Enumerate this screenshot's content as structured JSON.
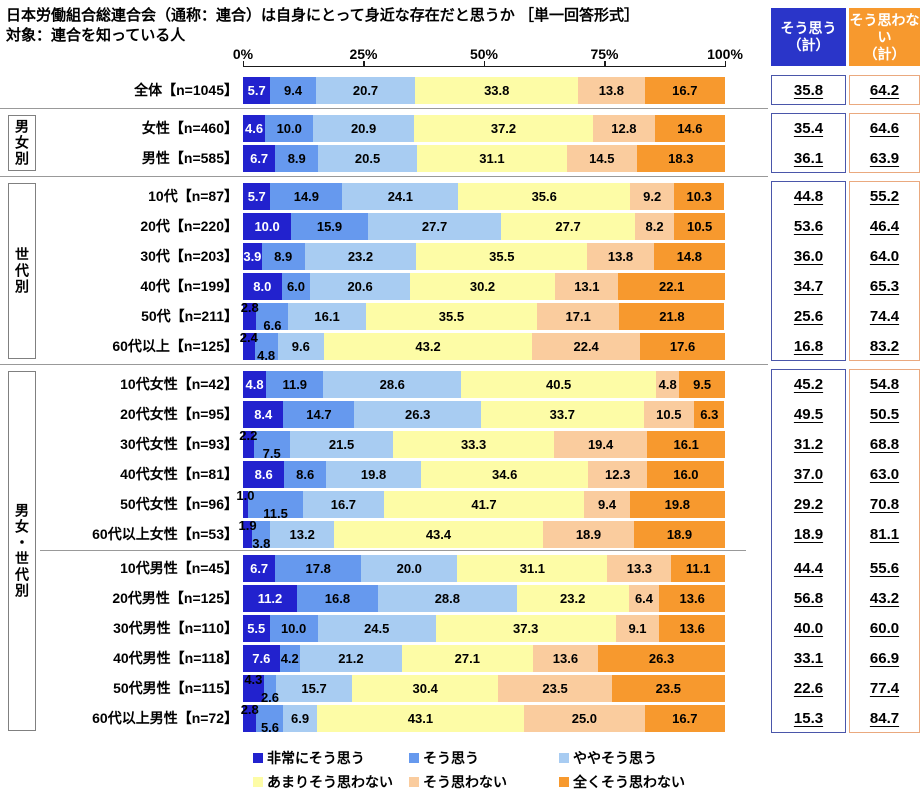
{
  "page": {
    "title": "日本労働組合総連合会（通称：連合）は自身にとって身近な存在だと思うか ［単一回答形式］",
    "subtitle": "対象：連合を知っている人"
  },
  "chart_data": {
    "type": "bar",
    "stacked": true,
    "orientation": "horizontal",
    "unit": "%",
    "xlim": [
      0,
      100
    ],
    "x_ticks": [
      "0%",
      "25%",
      "50%",
      "75%",
      "100%"
    ],
    "legend_position": "bottom",
    "series_names": [
      "非常にそう思う",
      "そう思う",
      "ややそう思う",
      "あまりそう思わない",
      "そう思わない",
      "全くそう思わない"
    ],
    "series_colors": [
      "#2222CE",
      "#6699EE",
      "#A8CCF2",
      "#FDFCA6",
      "#FACC9E",
      "#F7992E"
    ],
    "summary_columns": [
      {
        "label": "そう思う\n（計）",
        "bg": "#2A35C9",
        "border": "#4A56AA"
      },
      {
        "label": "そう思わない\n（計）",
        "bg": "#F7992E",
        "border": "#EAA97F"
      }
    ],
    "groups": [
      {
        "name": "",
        "rows": [
          {
            "label": "全体【n=1045】",
            "values": [
              "5.7",
              "9.4",
              "20.7",
              "33.8",
              "13.8",
              "16.7"
            ],
            "agree": "35.8",
            "disagree": "64.2"
          }
        ]
      },
      {
        "name": "男女別",
        "rows": [
          {
            "label": "女性【n=460】",
            "values": [
              "4.6",
              "10.0",
              "20.9",
              "37.2",
              "12.8",
              "14.6"
            ],
            "agree": "35.4",
            "disagree": "64.6"
          },
          {
            "label": "男性【n=585】",
            "values": [
              "6.7",
              "8.9",
              "20.5",
              "31.1",
              "14.5",
              "18.3"
            ],
            "agree": "36.1",
            "disagree": "63.9"
          }
        ]
      },
      {
        "name": "世代別",
        "rows": [
          {
            "label": "10代【n=87】",
            "values": [
              "5.7",
              "14.9",
              "24.1",
              "35.6",
              "9.2",
              "10.3"
            ],
            "agree": "44.8",
            "disagree": "55.2"
          },
          {
            "label": "20代【n=220】",
            "values": [
              "10.0",
              "15.9",
              "27.7",
              "27.7",
              "8.2",
              "10.5"
            ],
            "agree": "53.6",
            "disagree": "46.4"
          },
          {
            "label": "30代【n=203】",
            "values": [
              "3.9",
              "8.9",
              "23.2",
              "35.5",
              "13.8",
              "14.8"
            ],
            "agree": "36.0",
            "disagree": "64.0"
          },
          {
            "label": "40代【n=199】",
            "values": [
              "8.0",
              "6.0",
              "20.6",
              "30.2",
              "13.1",
              "22.1"
            ],
            "agree": "34.7",
            "disagree": "65.3"
          },
          {
            "label": "50代【n=211】",
            "values": [
              "2.8",
              "6.6",
              "16.1",
              "35.5",
              "17.1",
              "21.8"
            ],
            "agree": "25.6",
            "disagree": "74.4"
          },
          {
            "label": "60代以上【n=125】",
            "values": [
              "2.4",
              "4.8",
              "9.6",
              "43.2",
              "22.4",
              "17.6"
            ],
            "agree": "16.8",
            "disagree": "83.2"
          }
        ]
      },
      {
        "name": "男女・世代別",
        "split_after": 6,
        "rows": [
          {
            "label": "10代女性【n=42】",
            "values": [
              "4.8",
              "11.9",
              "28.6",
              "40.5",
              "4.8",
              "9.5"
            ],
            "agree": "45.2",
            "disagree": "54.8"
          },
          {
            "label": "20代女性【n=95】",
            "values": [
              "8.4",
              "14.7",
              "26.3",
              "33.7",
              "10.5",
              "6.3"
            ],
            "agree": "49.5",
            "disagree": "50.5"
          },
          {
            "label": "30代女性【n=93】",
            "values": [
              "2.2",
              "7.5",
              "21.5",
              "33.3",
              "19.4",
              "16.1"
            ],
            "agree": "31.2",
            "disagree": "68.8"
          },
          {
            "label": "40代女性【n=81】",
            "values": [
              "8.6",
              "8.6",
              "19.8",
              "34.6",
              "12.3",
              "16.0"
            ],
            "agree": "37.0",
            "disagree": "63.0"
          },
          {
            "label": "50代女性【n=96】",
            "values": [
              "1.0",
              "11.5",
              "16.7",
              "41.7",
              "9.4",
              "19.8"
            ],
            "agree": "29.2",
            "disagree": "70.8"
          },
          {
            "label": "60代以上女性【n=53】",
            "values": [
              "1.9",
              "3.8",
              "13.2",
              "43.4",
              "18.9",
              "18.9"
            ],
            "agree": "18.9",
            "disagree": "81.1"
          },
          {
            "label": "10代男性【n=45】",
            "values": [
              "6.7",
              "17.8",
              "20.0",
              "31.1",
              "13.3",
              "11.1"
            ],
            "agree": "44.4",
            "disagree": "55.6"
          },
          {
            "label": "20代男性【n=125】",
            "values": [
              "11.2",
              "16.8",
              "28.8",
              "23.2",
              "6.4",
              "13.6"
            ],
            "agree": "56.8",
            "disagree": "43.2"
          },
          {
            "label": "30代男性【n=110】",
            "values": [
              "5.5",
              "10.0",
              "24.5",
              "37.3",
              "9.1",
              "13.6"
            ],
            "agree": "40.0",
            "disagree": "60.0"
          },
          {
            "label": "40代男性【n=118】",
            "values": [
              "7.6",
              "4.2",
              "21.2",
              "27.1",
              "13.6",
              "26.3"
            ],
            "agree": "33.1",
            "disagree": "66.9"
          },
          {
            "label": "50代男性【n=115】",
            "values": [
              "4.3",
              "2.6",
              "15.7",
              "30.4",
              "23.5",
              "23.5"
            ],
            "agree": "22.6",
            "disagree": "77.4"
          },
          {
            "label": "60代以上男性【n=72】",
            "values": [
              "2.8",
              "5.6",
              "6.9",
              "43.1",
              "25.0",
              "16.7"
            ],
            "agree": "15.3",
            "disagree": "84.7"
          }
        ]
      }
    ]
  }
}
